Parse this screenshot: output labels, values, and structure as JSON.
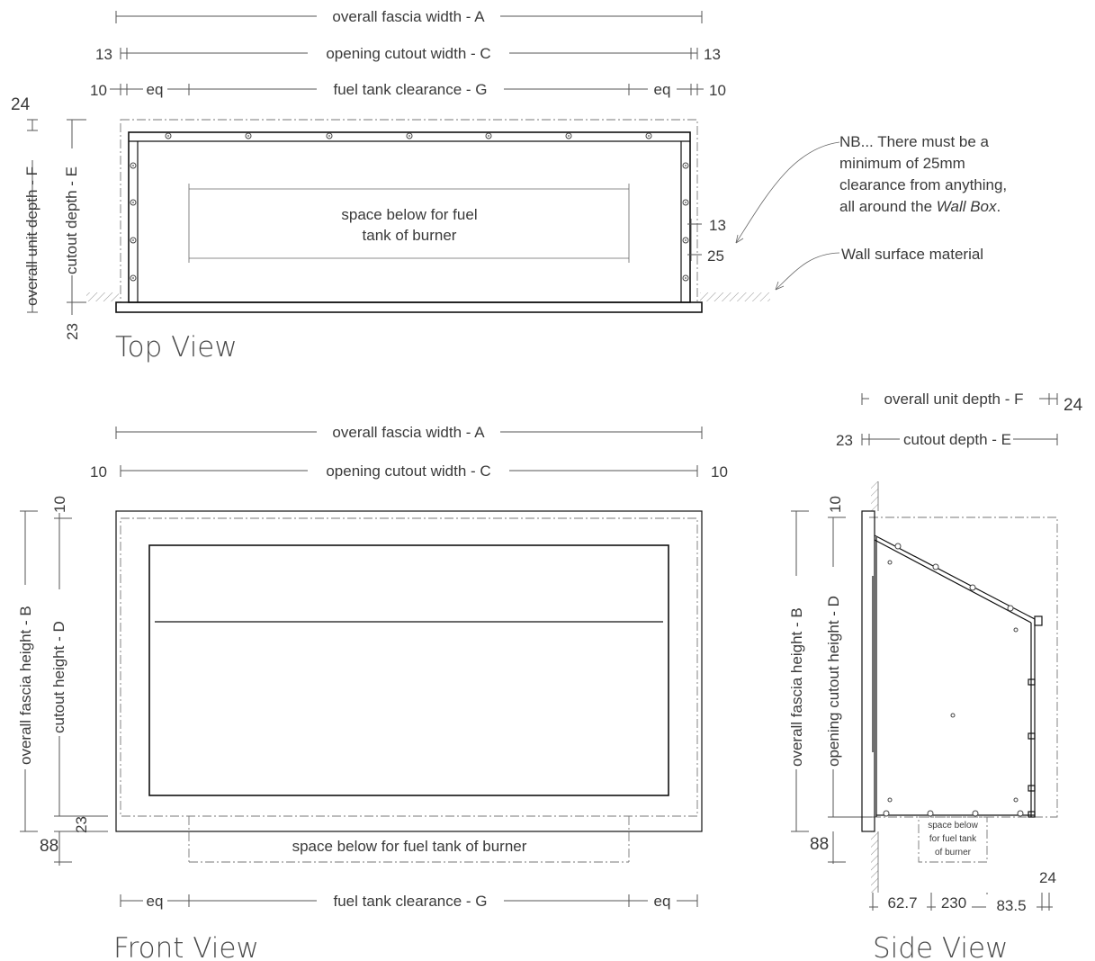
{
  "labels": {
    "overall_fascia_width": "overall fascia width - A",
    "opening_cutout_width": "opening cutout width - C",
    "fuel_tank_clearance": "fuel tank clearance - G",
    "eq": "eq",
    "overall_unit_depth": "overall unit depth - F",
    "cutout_depth": "cutout depth - E",
    "overall_fascia_height": "overall fascia height - B",
    "cutout_height": "cutout height - D",
    "opening_cutout_height": "opening cutout height - D",
    "space_below_fuel_line1": "space below for fuel",
    "space_below_fuel_line2": "tank of burner",
    "space_below_fuel_tank": "space below for fuel tank of burner",
    "side_space_line1": "space below",
    "side_space_line2": "for fuel tank",
    "side_space_line3": "of burner",
    "note_line1": "NB... There must be a",
    "note_line2": "minimum of 25mm",
    "note_line3": "clearance from anything,",
    "note_line4_prefix": "all around the ",
    "note_line4_italic": "Wall Box",
    "note_line4_suffix": ".",
    "wall_surface": "Wall surface material"
  },
  "dims": {
    "d13": "13",
    "d10": "10",
    "d24": "24",
    "d23": "23",
    "d25": "25",
    "d88": "88",
    "d62_7": "62.7",
    "d230": "230",
    "d83_5": "83.5"
  },
  "views": {
    "top": "Top View",
    "front": "Front View",
    "side": "Side View"
  }
}
